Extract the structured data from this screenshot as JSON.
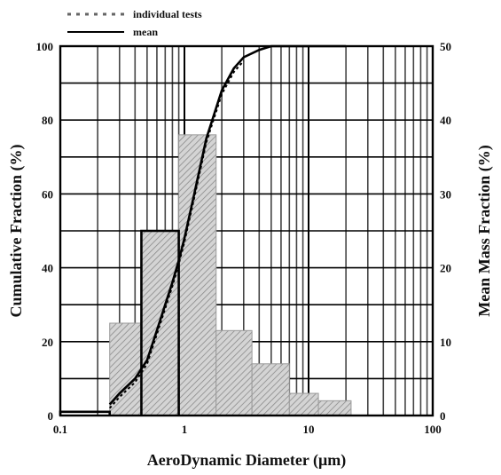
{
  "chart_data": {
    "type": "bar",
    "xlabel": "AeroDynamic Diameter (μm)",
    "ylabel": "Cumulative Fraction (%)",
    "y2label": "Mean Mass Fraction (%)",
    "xscale": "log",
    "xlim": [
      0.1,
      100
    ],
    "ylim": [
      0,
      100
    ],
    "y2lim": [
      0,
      50
    ],
    "xticks": [
      "0.1",
      "1",
      "10",
      "100"
    ],
    "yticks": [
      "0",
      "20",
      "40",
      "60",
      "80",
      "100"
    ],
    "y2ticks": [
      "0",
      "10",
      "20",
      "30",
      "40",
      "50"
    ],
    "grid": true,
    "legend": {
      "placement": "top-left, above plot",
      "entries": [
        {
          "label": "individual tests",
          "style": "dashed"
        },
        {
          "label": "mean",
          "style": "solid"
        }
      ]
    },
    "bars_mean_mass_fraction": [
      {
        "x0": 0.25,
        "x1": 0.45,
        "value": 12.5
      },
      {
        "x0": 0.45,
        "x1": 0.9,
        "value": 25
      },
      {
        "x0": 0.9,
        "x1": 1.8,
        "value": 38
      },
      {
        "x0": 1.8,
        "x1": 3.5,
        "value": 11.5
      },
      {
        "x0": 3.5,
        "x1": 7,
        "value": 7
      },
      {
        "x0": 7,
        "x1": 12,
        "value": 3
      },
      {
        "x0": 12,
        "x1": 22,
        "value": 2
      }
    ],
    "step_series_mean": [
      {
        "x0": 0.1,
        "x1": 0.25,
        "value": 0.5
      },
      {
        "x0": 0.45,
        "x1": 0.9,
        "value": 25
      }
    ],
    "cumulative_mean": {
      "x": [
        0.25,
        0.3,
        0.4,
        0.5,
        0.6,
        0.7,
        0.8,
        0.9,
        1.0,
        1.2,
        1.5,
        2.0,
        2.5,
        3.0,
        4.0,
        5.0,
        6.0,
        8.0,
        10.0,
        15.0,
        20.0
      ],
      "y": [
        3,
        6,
        10,
        15,
        23,
        30,
        36,
        42,
        48,
        60,
        75,
        88,
        94,
        97,
        99,
        100,
        100,
        100,
        100,
        100,
        100
      ]
    },
    "cumulative_tests": {
      "x": [
        0.25,
        0.3,
        0.4,
        0.5,
        0.6,
        0.7,
        0.8,
        0.9,
        1.0,
        1.2,
        1.5,
        2.0,
        2.5,
        3.0
      ],
      "y": [
        2,
        5,
        9,
        14,
        22,
        29,
        35,
        41,
        47,
        59,
        74,
        87,
        93,
        96
      ]
    },
    "colors": {
      "bar_fill": "#cfcfcf",
      "bar_hatch": "#8a8a8a",
      "grid": "#000000",
      "line": "#000000"
    }
  }
}
